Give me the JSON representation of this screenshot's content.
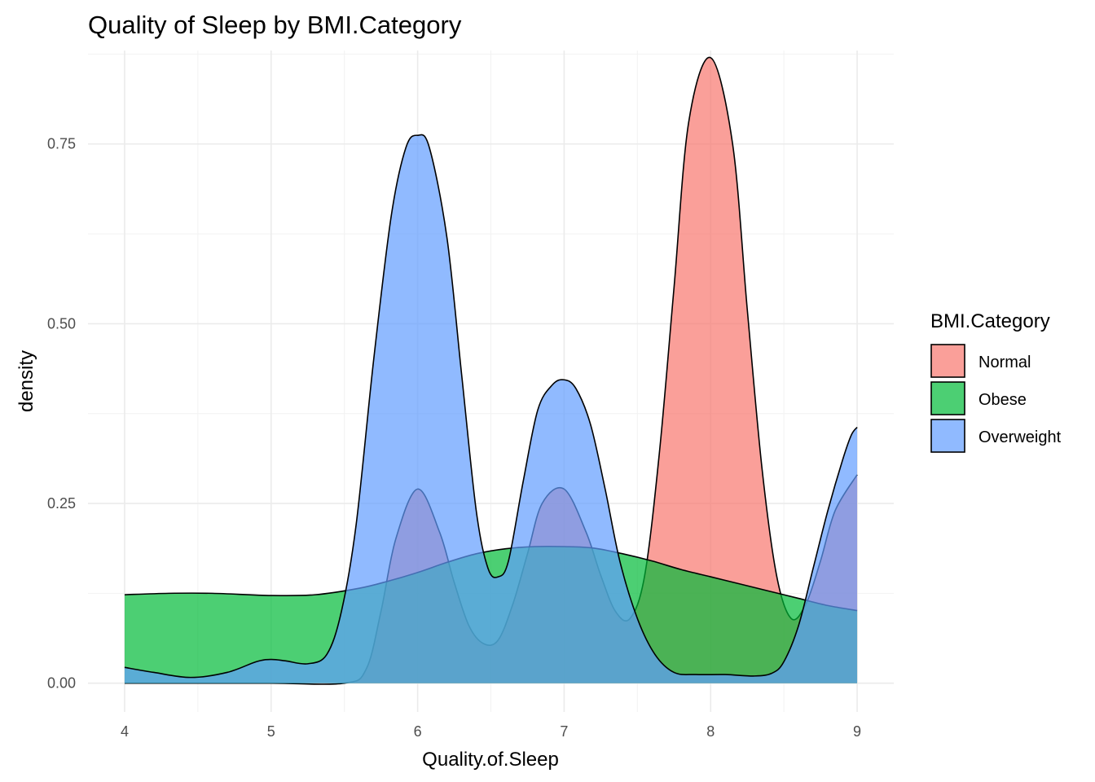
{
  "chart_data": {
    "type": "area",
    "title": "Quality of Sleep by BMI.Category",
    "xlabel": "Quality.of.Sleep",
    "ylabel": "density",
    "xlim": [
      3.75,
      9.25
    ],
    "ylim": [
      -0.04,
      0.88
    ],
    "x_ticks": [
      4,
      5,
      6,
      7,
      8,
      9
    ],
    "y_ticks": [
      0.0,
      0.25,
      0.5,
      0.75
    ],
    "y_tick_labels": [
      "0.00",
      "0.25",
      "0.50",
      "0.75"
    ],
    "grid": true,
    "legend": {
      "title": "BMI.Category",
      "position": "right"
    },
    "series": [
      {
        "name": "Normal",
        "color": "#F8766D",
        "points": [
          [
            4,
            0.0
          ],
          [
            4.5,
            0.0
          ],
          [
            5,
            0.0
          ],
          [
            5.5,
            0.0
          ],
          [
            5.65,
            0.02
          ],
          [
            5.75,
            0.1
          ],
          [
            5.85,
            0.2
          ],
          [
            6,
            0.27
          ],
          [
            6.15,
            0.21
          ],
          [
            6.25,
            0.14
          ],
          [
            6.35,
            0.08
          ],
          [
            6.45,
            0.055
          ],
          [
            6.55,
            0.06
          ],
          [
            6.65,
            0.11
          ],
          [
            6.75,
            0.18
          ],
          [
            6.85,
            0.25
          ],
          [
            7,
            0.27
          ],
          [
            7.15,
            0.21
          ],
          [
            7.25,
            0.15
          ],
          [
            7.35,
            0.1
          ],
          [
            7.45,
            0.09
          ],
          [
            7.55,
            0.15
          ],
          [
            7.65,
            0.32
          ],
          [
            7.75,
            0.55
          ],
          [
            7.85,
            0.78
          ],
          [
            8,
            0.87
          ],
          [
            8.15,
            0.75
          ],
          [
            8.25,
            0.52
          ],
          [
            8.35,
            0.3
          ],
          [
            8.45,
            0.15
          ],
          [
            8.55,
            0.09
          ],
          [
            8.65,
            0.11
          ],
          [
            8.75,
            0.17
          ],
          [
            8.85,
            0.24
          ],
          [
            9,
            0.29
          ]
        ]
      },
      {
        "name": "Obese",
        "color": "#00BA38",
        "points": [
          [
            4,
            0.123
          ],
          [
            4.3,
            0.125
          ],
          [
            4.6,
            0.125
          ],
          [
            5,
            0.122
          ],
          [
            5.3,
            0.123
          ],
          [
            5.6,
            0.132
          ],
          [
            5.8,
            0.142
          ],
          [
            6,
            0.154
          ],
          [
            6.2,
            0.168
          ],
          [
            6.4,
            0.18
          ],
          [
            6.6,
            0.187
          ],
          [
            6.8,
            0.19
          ],
          [
            7,
            0.19
          ],
          [
            7.2,
            0.188
          ],
          [
            7.4,
            0.18
          ],
          [
            7.6,
            0.17
          ],
          [
            7.8,
            0.158
          ],
          [
            8,
            0.148
          ],
          [
            8.2,
            0.138
          ],
          [
            8.4,
            0.128
          ],
          [
            8.6,
            0.118
          ],
          [
            8.8,
            0.108
          ],
          [
            9,
            0.101
          ]
        ]
      },
      {
        "name": "Overweight",
        "color": "#619CFF",
        "points": [
          [
            4,
            0.022
          ],
          [
            4.2,
            0.015
          ],
          [
            4.45,
            0.008
          ],
          [
            4.7,
            0.015
          ],
          [
            4.9,
            0.03
          ],
          [
            5,
            0.033
          ],
          [
            5.1,
            0.031
          ],
          [
            5.25,
            0.027
          ],
          [
            5.38,
            0.04
          ],
          [
            5.48,
            0.1
          ],
          [
            5.58,
            0.22
          ],
          [
            5.7,
            0.45
          ],
          [
            5.82,
            0.65
          ],
          [
            5.92,
            0.745
          ],
          [
            6,
            0.762
          ],
          [
            6.08,
            0.745
          ],
          [
            6.2,
            0.62
          ],
          [
            6.3,
            0.43
          ],
          [
            6.4,
            0.24
          ],
          [
            6.48,
            0.16
          ],
          [
            6.55,
            0.148
          ],
          [
            6.62,
            0.17
          ],
          [
            6.72,
            0.28
          ],
          [
            6.82,
            0.38
          ],
          [
            6.92,
            0.415
          ],
          [
            7,
            0.422
          ],
          [
            7.08,
            0.41
          ],
          [
            7.18,
            0.36
          ],
          [
            7.28,
            0.27
          ],
          [
            7.38,
            0.17
          ],
          [
            7.5,
            0.09
          ],
          [
            7.62,
            0.04
          ],
          [
            7.75,
            0.015
          ],
          [
            7.9,
            0.012
          ],
          [
            8.1,
            0.012
          ],
          [
            8.3,
            0.01
          ],
          [
            8.42,
            0.014
          ],
          [
            8.5,
            0.03
          ],
          [
            8.6,
            0.08
          ],
          [
            8.7,
            0.16
          ],
          [
            8.8,
            0.24
          ],
          [
            8.9,
            0.31
          ],
          [
            8.96,
            0.345
          ],
          [
            9,
            0.356
          ]
        ]
      }
    ]
  }
}
